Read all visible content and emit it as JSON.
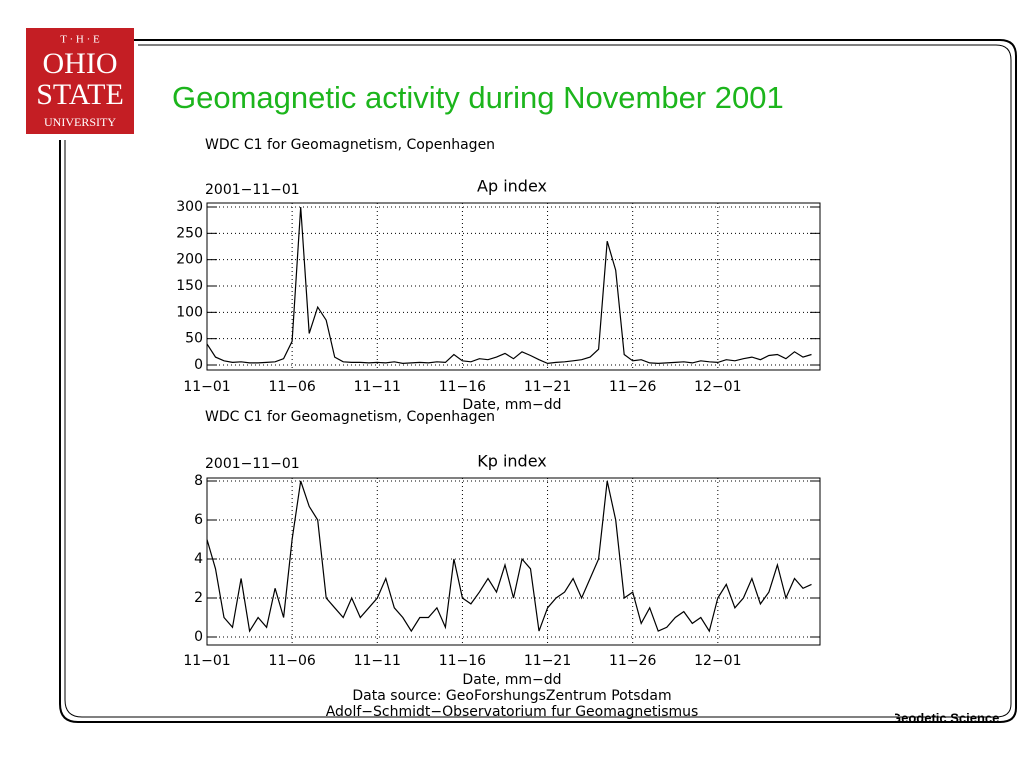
{
  "header": {
    "logo": [
      "T · H · E",
      "OHIO",
      "STATE",
      "UNIVERSITY"
    ],
    "title": "Geomagnetic activity during November 2001"
  },
  "footer": "Geodetic Science",
  "source_lines": [
    "Data source: GeoForshungsZentrum Potsdam",
    "Adolf−Schmidt−Observatorium fur Geomagnetismus"
  ],
  "chart_data": [
    {
      "type": "line",
      "subtitle": "WDC C1 for Geomagnetism, Copenhagen",
      "title": "Ap index",
      "annotation": "2001−11−01",
      "xlabel": "Date, mm−dd",
      "grid": true,
      "xlim": [
        0,
        36
      ],
      "ylim": [
        0,
        300
      ],
      "xticks": [
        {
          "value": 0,
          "label": "11−01"
        },
        {
          "value": 5,
          "label": "11−06"
        },
        {
          "value": 10,
          "label": "11−11"
        },
        {
          "value": 15,
          "label": "11−16"
        },
        {
          "value": 20,
          "label": "11−21"
        },
        {
          "value": 25,
          "label": "11−26"
        },
        {
          "value": 30,
          "label": "12−01"
        }
      ],
      "yticks": [
        0,
        50,
        100,
        150,
        200,
        250,
        300
      ],
      "x": [
        0,
        0.5,
        1,
        1.5,
        2,
        2.5,
        3,
        3.5,
        4,
        4.5,
        5,
        5.5,
        6,
        6.5,
        7,
        7.5,
        8,
        8.5,
        9,
        9.5,
        10,
        10.5,
        11,
        11.5,
        12,
        12.5,
        13,
        13.5,
        14,
        14.5,
        15,
        15.5,
        16,
        16.5,
        17,
        17.5,
        18,
        18.5,
        19,
        19.5,
        20,
        20.5,
        21,
        21.5,
        22,
        22.5,
        23,
        23.5,
        24,
        24.5,
        25,
        25.5,
        26,
        26.5,
        27,
        27.5,
        28,
        28.5,
        29,
        29.5,
        30,
        30.5,
        31,
        31.5,
        32,
        32.5,
        33,
        33.5,
        34,
        34.5,
        35,
        35.5
      ],
      "series": [
        {
          "name": "Ap",
          "color": "#000000",
          "values": [
            40,
            15,
            8,
            5,
            6,
            4,
            4,
            5,
            6,
            12,
            45,
            300,
            60,
            110,
            85,
            15,
            6,
            5,
            5,
            4,
            5,
            4,
            6,
            3,
            4,
            5,
            4,
            6,
            5,
            20,
            8,
            6,
            12,
            10,
            15,
            22,
            12,
            25,
            18,
            10,
            3,
            5,
            6,
            8,
            10,
            15,
            30,
            235,
            180,
            20,
            8,
            10,
            4,
            3,
            4,
            5,
            6,
            4,
            8,
            6,
            5,
            10,
            8,
            12,
            15,
            10,
            18,
            20,
            12,
            25,
            15,
            20
          ]
        }
      ]
    },
    {
      "type": "line",
      "subtitle": "WDC C1 for Geomagnetism, Copenhagen",
      "title": "Kp index",
      "annotation": "2001−11−01",
      "xlabel": "Date, mm−dd",
      "grid": true,
      "xlim": [
        0,
        36
      ],
      "ylim": [
        0,
        8
      ],
      "xticks": [
        {
          "value": 0,
          "label": "11−01"
        },
        {
          "value": 5,
          "label": "11−06"
        },
        {
          "value": 10,
          "label": "11−11"
        },
        {
          "value": 15,
          "label": "11−16"
        },
        {
          "value": 20,
          "label": "11−21"
        },
        {
          "value": 25,
          "label": "11−26"
        },
        {
          "value": 30,
          "label": "12−01"
        }
      ],
      "yticks": [
        0,
        2,
        4,
        6,
        8
      ],
      "x": [
        0,
        0.5,
        1,
        1.5,
        2,
        2.5,
        3,
        3.5,
        4,
        4.5,
        5,
        5.5,
        6,
        6.5,
        7,
        7.5,
        8,
        8.5,
        9,
        9.5,
        10,
        10.5,
        11,
        11.5,
        12,
        12.5,
        13,
        13.5,
        14,
        14.5,
        15,
        15.5,
        16,
        16.5,
        17,
        17.5,
        18,
        18.5,
        19,
        19.5,
        20,
        20.5,
        21,
        21.5,
        22,
        22.5,
        23,
        23.5,
        24,
        24.5,
        25,
        25.5,
        26,
        26.5,
        27,
        27.5,
        28,
        28.5,
        29,
        29.5,
        30,
        30.5,
        31,
        31.5,
        32,
        32.5,
        33,
        33.5,
        34,
        34.5,
        35,
        35.5
      ],
      "series": [
        {
          "name": "Kp",
          "color": "#000000",
          "values": [
            5,
            3.5,
            1,
            0.5,
            3,
            0.3,
            1,
            0.5,
            2.5,
            1,
            5,
            8,
            6.7,
            6,
            2,
            1.5,
            1,
            2,
            1,
            1.5,
            2,
            3,
            1.5,
            1,
            0.3,
            1,
            1,
            1.5,
            0.5,
            4,
            2,
            1.7,
            2.3,
            3,
            2.3,
            3.7,
            2,
            4,
            3.5,
            0.3,
            1.5,
            2,
            2.3,
            3,
            2,
            3,
            4,
            8,
            6,
            2,
            2.3,
            0.7,
            1.5,
            0.3,
            0.5,
            1,
            1.3,
            0.7,
            1,
            0.3,
            2,
            2.7,
            1.5,
            2,
            3,
            1.7,
            2.3,
            3.7,
            2,
            3,
            2.5,
            2.7
          ]
        }
      ]
    }
  ]
}
